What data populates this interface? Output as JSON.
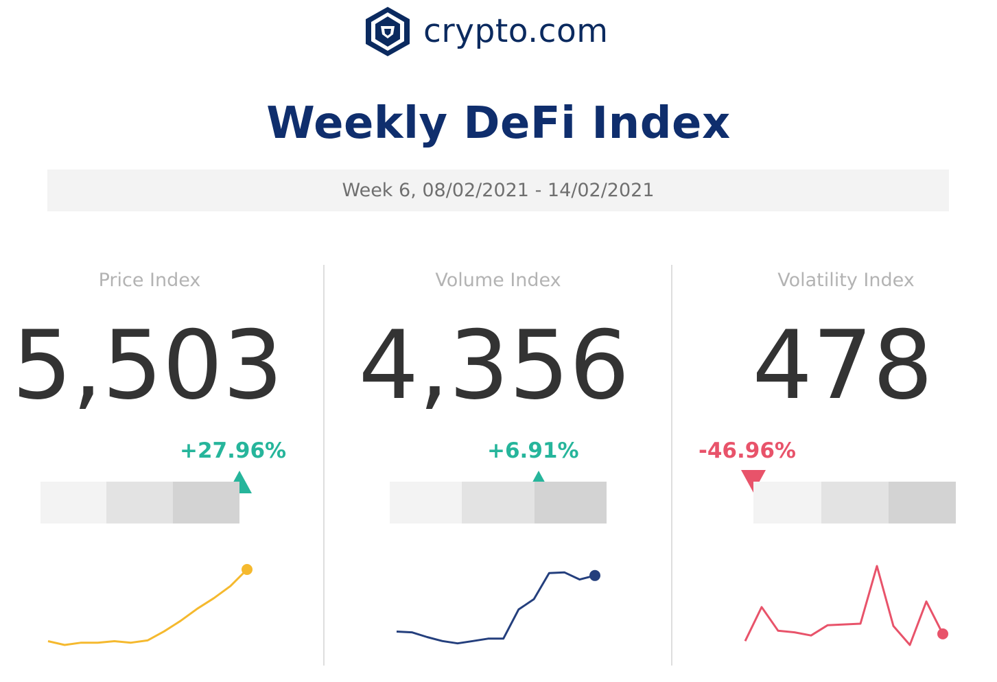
{
  "header": {
    "brand": "crypto.com",
    "title": "Weekly DeFi Index",
    "week": "Week 6, 08/02/2021 - 14/02/2021"
  },
  "icons": {
    "logo": "crypto-lion-shield-icon"
  },
  "colors": {
    "navy": "#0f2e6d",
    "up": "#26b59b",
    "down": "#e8536a",
    "price_line": "#f5b92e",
    "volume_line": "#243f7d",
    "volatility_line": "#e8536a"
  },
  "panels": [
    {
      "label": "Price Index",
      "value": "5,503",
      "change": "+27.96%",
      "direction": "up",
      "range_position": 0.95,
      "spark": [
        0.05,
        0.0,
        0.03,
        0.03,
        0.05,
        0.03,
        0.06,
        0.18,
        0.32,
        0.48,
        0.62,
        0.78,
        1.0
      ]
    },
    {
      "label": "Volume Index",
      "value": "4,356",
      "change": "+6.91%",
      "direction": "up",
      "range_position": 0.7,
      "spark": [
        0.17,
        0.16,
        0.1,
        0.05,
        0.02,
        0.05,
        0.08,
        0.08,
        0.45,
        0.58,
        0.91,
        0.92,
        0.83,
        0.88
      ]
    },
    {
      "label": "Volatility Index",
      "value": "478",
      "change": "-46.96%",
      "direction": "down",
      "range_position": 0.0,
      "spark": [
        0.05,
        0.48,
        0.18,
        0.16,
        0.12,
        0.25,
        0.26,
        0.27,
        1.0,
        0.24,
        0.0,
        0.55,
        0.14
      ]
    }
  ]
}
